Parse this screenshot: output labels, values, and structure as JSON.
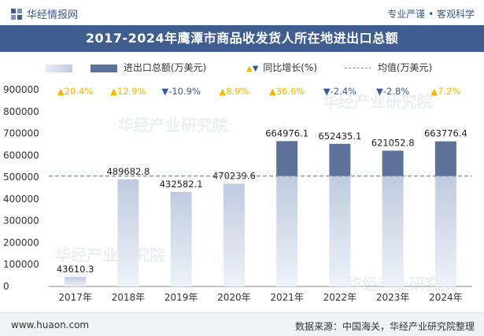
{
  "header": {
    "brand": "华经情报网",
    "tagline": "专业严谨 • 客观科学",
    "title": "2017-2024年鹰潭市商品收发货人所在地进出口总额"
  },
  "legend": {
    "series1": "进出口总额(万美元)",
    "series2": "同比增长(%)",
    "series3": "均值(万美元)"
  },
  "footer": {
    "site": "www.huaon.com",
    "source": "数据来源：中国海关，华经产业研究院整理"
  },
  "watermark": "华经产业研究院",
  "colors": {
    "title_bg": "#3f5d8f",
    "bar_dark": "#5d7298",
    "bar_fade_top": "#c0cbe0",
    "bar_fade_bottom": "#eef1f7",
    "up": "#f2b800",
    "down": "#3a5a8c",
    "mean_line": "#7a8aa8"
  },
  "chart_data": {
    "type": "bar",
    "title": "2017-2024年鹰潭市商品收发货人所在地进出口总额",
    "categories": [
      "2017年",
      "2018年",
      "2019年",
      "2020年",
      "2021年",
      "2022年",
      "2023年",
      "2024年"
    ],
    "series": [
      {
        "name": "进出口总额(万美元)",
        "values": [
          43610.3,
          489682.8,
          432582.1,
          470239.6,
          664976.1,
          652435.1,
          621052.8,
          663776.4
        ]
      },
      {
        "name": "同比增长(%)",
        "values": [
          20.4,
          12.9,
          -10.9,
          8.9,
          36.6,
          -2.4,
          -2.8,
          7.2
        ]
      }
    ],
    "value_labels": [
      "43610.3",
      "489682.8",
      "432582.1",
      "470239.6",
      "664976.1",
      "652435.1",
      "621052.8",
      "663776.4"
    ],
    "growth_labels": [
      "20.4%",
      "12.9%",
      "-10.9%",
      "8.9%",
      "36.6%",
      "-2.4%",
      "-2.8%",
      "7.2%"
    ],
    "mean_label": "均值(万美元)",
    "mean_value": 504794.4,
    "ylim": [
      0,
      900000
    ],
    "yticks": [
      0,
      100000,
      200000,
      300000,
      400000,
      500000,
      600000,
      700000,
      800000,
      900000
    ],
    "ytick_labels": [
      "0",
      "100000",
      "200000",
      "300000",
      "400000",
      "500000",
      "600000",
      "700000",
      "800000",
      "900000"
    ],
    "xlabel": "",
    "ylabel": ""
  }
}
